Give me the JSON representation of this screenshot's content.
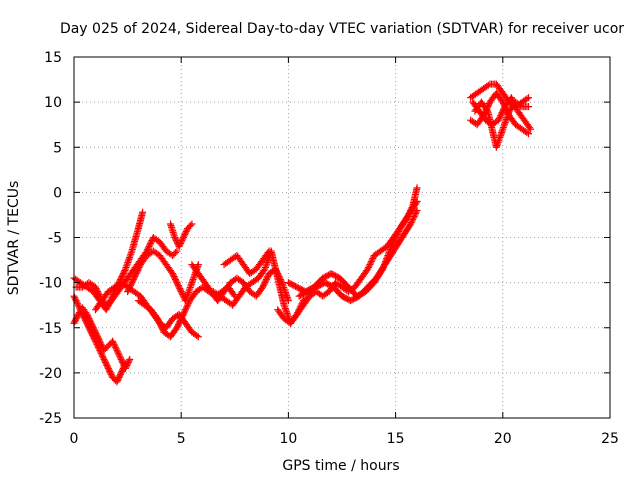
{
  "chart_data": {
    "type": "scatter",
    "title": "Day 025 of 2024, Sidereal Day-to-day VTEC variation (SDTVAR) for receiver ucor",
    "xlabel": "GPS time / hours",
    "ylabel": "SDTVAR / TECUs",
    "xlim": [
      0,
      25
    ],
    "ylim": [
      -25,
      15
    ],
    "xticks": [
      "0",
      "5",
      "10",
      "15",
      "20",
      "25"
    ],
    "yticks": [
      "-25",
      "-20",
      "-15",
      "-10",
      "-5",
      "0",
      "5",
      "10",
      "15"
    ],
    "xtick_values": [
      0,
      5,
      10,
      15,
      20,
      25
    ],
    "ytick_values": [
      -25,
      -20,
      -15,
      -10,
      -5,
      0,
      5,
      10,
      15
    ],
    "grid": true,
    "marker": "+",
    "colors": {
      "series": "#ff0000",
      "grid": "#a0a0a0",
      "axis": "#000000"
    },
    "series": [
      {
        "x": [
          0.0,
          0.2,
          0.4,
          0.6,
          0.8,
          1.0,
          1.2,
          1.4,
          1.6,
          1.8,
          2.0,
          2.2,
          2.4
        ],
        "y": [
          -11.5,
          -12.5,
          -13.5,
          -14.5,
          -15.5,
          -16.5,
          -17.5,
          -18.5,
          -19.5,
          -20.5,
          -21.0,
          -20.0,
          -19.0
        ]
      },
      {
        "x": [
          0.0,
          0.2,
          0.4,
          0.6,
          0.8,
          1.0,
          1.2,
          1.4,
          1.6,
          1.8,
          2.0,
          2.2,
          2.4,
          2.6
        ],
        "y": [
          -14.5,
          -13.5,
          -12.8,
          -13.5,
          -14.5,
          -15.5,
          -16.5,
          -17.5,
          -17.0,
          -16.5,
          -17.5,
          -18.5,
          -19.5,
          -18.5
        ]
      },
      {
        "x": [
          0.0,
          0.3,
          0.6,
          0.9,
          1.2,
          1.5,
          1.8,
          2.1,
          2.4,
          2.7,
          3.0,
          3.2
        ],
        "y": [
          -9.5,
          -10.0,
          -10.5,
          -11.0,
          -12.0,
          -13.0,
          -11.5,
          -10.0,
          -8.5,
          -6.5,
          -4.0,
          -2.2
        ]
      },
      {
        "x": [
          0.1,
          0.4,
          0.7,
          1.0,
          1.3,
          1.6,
          1.9,
          2.2,
          2.5,
          2.8,
          3.1,
          3.4,
          3.7,
          4.0,
          4.3,
          4.6,
          4.8
        ],
        "y": [
          -10.5,
          -10.5,
          -10.0,
          -10.5,
          -12.0,
          -12.5,
          -11.5,
          -10.5,
          -9.5,
          -8.5,
          -7.5,
          -6.5,
          -5.0,
          -5.5,
          -6.5,
          -7.0,
          -6.5
        ]
      },
      {
        "x": [
          1.0,
          1.3,
          1.6,
          1.9,
          2.2,
          2.5,
          2.8,
          3.1,
          3.4,
          3.7,
          4.0,
          4.3,
          4.6,
          4.9,
          5.2,
          5.5,
          5.8
        ],
        "y": [
          -13.0,
          -12.0,
          -11.0,
          -10.5,
          -10.0,
          -10.5,
          -11.0,
          -11.5,
          -12.5,
          -13.5,
          -14.5,
          -15.0,
          -14.0,
          -13.5,
          -14.5,
          -15.5,
          -16.0
        ]
      },
      {
        "x": [
          2.5,
          2.8,
          3.1,
          3.4,
          3.7,
          4.0,
          4.3,
          4.6,
          4.9,
          5.2,
          5.5,
          5.8
        ],
        "y": [
          -11.0,
          -9.5,
          -8.0,
          -7.0,
          -6.5,
          -7.0,
          -8.0,
          -9.0,
          -10.5,
          -12.0,
          -10.0,
          -8.0
        ]
      },
      {
        "x": [
          3.0,
          3.3,
          3.6,
          3.9,
          4.2,
          4.5,
          4.8,
          5.1,
          5.4,
          5.7,
          6.0,
          6.3,
          6.6,
          6.9,
          7.2,
          7.5
        ],
        "y": [
          -12.0,
          -12.5,
          -13.0,
          -14.0,
          -15.5,
          -16.0,
          -15.0,
          -13.5,
          -12.0,
          -11.0,
          -10.5,
          -11.0,
          -11.5,
          -11.0,
          -10.5,
          -11.5
        ]
      },
      {
        "x": [
          4.5,
          4.7,
          4.9,
          5.1,
          5.3,
          5.5
        ],
        "y": [
          -3.5,
          -5.0,
          -6.0,
          -5.0,
          -4.0,
          -3.5
        ]
      },
      {
        "x": [
          5.5,
          5.8,
          6.1,
          6.4,
          6.7,
          7.0,
          7.3,
          7.6,
          7.9,
          8.2,
          8.5,
          8.8,
          9.1,
          9.4,
          9.7,
          10.0
        ],
        "y": [
          -8.0,
          -9.0,
          -10.0,
          -11.0,
          -12.0,
          -11.0,
          -10.0,
          -9.5,
          -10.0,
          -11.0,
          -11.5,
          -10.5,
          -9.0,
          -8.5,
          -10.0,
          -12.0
        ]
      },
      {
        "x": [
          6.5,
          6.8,
          7.1,
          7.4,
          7.7,
          8.0,
          8.3,
          8.6,
          8.9,
          9.2,
          9.5,
          9.8,
          10.1,
          10.4,
          10.7,
          11.0
        ],
        "y": [
          -11.0,
          -11.5,
          -12.0,
          -12.5,
          -11.5,
          -10.5,
          -10.0,
          -9.5,
          -8.5,
          -6.5,
          -9.5,
          -12.5,
          -14.5,
          -13.5,
          -12.0,
          -11.5
        ]
      },
      {
        "x": [
          7.0,
          7.3,
          7.6,
          7.9,
          8.2,
          8.5,
          8.8,
          9.1
        ],
        "y": [
          -8.0,
          -7.5,
          -7.0,
          -8.0,
          -9.0,
          -8.5,
          -7.5,
          -6.5
        ]
      },
      {
        "x": [
          9.5,
          9.8,
          10.1,
          10.4,
          10.7,
          11.0,
          11.3,
          11.6,
          11.9,
          12.2,
          12.5,
          12.8,
          13.1,
          13.4,
          13.7,
          14.0,
          14.3,
          14.6,
          14.9,
          15.2,
          15.5,
          15.8,
          16.0
        ],
        "y": [
          -13.0,
          -14.0,
          -14.5,
          -13.5,
          -12.5,
          -11.5,
          -11.0,
          -11.5,
          -11.0,
          -10.0,
          -10.5,
          -11.0,
          -10.5,
          -9.5,
          -8.5,
          -7.0,
          -6.5,
          -6.0,
          -5.0,
          -4.0,
          -3.0,
          -1.5,
          0.5
        ]
      },
      {
        "x": [
          10.0,
          10.4,
          10.8,
          11.2,
          11.6,
          12.0,
          12.4,
          12.8,
          13.2,
          13.6,
          14.0,
          14.4,
          14.8,
          15.2,
          15.6,
          16.0
        ],
        "y": [
          -10.0,
          -10.5,
          -11.0,
          -10.5,
          -9.5,
          -9.0,
          -9.5,
          -10.5,
          -11.5,
          -11.0,
          -10.0,
          -8.5,
          -6.0,
          -4.0,
          -2.5,
          -1.0
        ]
      },
      {
        "x": [
          10.5,
          10.9,
          11.3,
          11.7,
          12.1,
          12.5,
          12.9,
          13.3,
          13.7,
          14.1,
          14.5,
          14.9,
          15.3,
          15.7,
          16.0
        ],
        "y": [
          -11.5,
          -11.0,
          -10.5,
          -10.0,
          -10.5,
          -11.5,
          -12.0,
          -11.5,
          -10.5,
          -9.5,
          -8.0,
          -6.5,
          -5.0,
          -3.5,
          -2.0
        ]
      },
      {
        "x": [
          18.5,
          18.8,
          19.1,
          19.4,
          19.7,
          20.0,
          20.3,
          20.6,
          20.9,
          21.2
        ],
        "y": [
          10.5,
          11.0,
          11.5,
          12.0,
          12.0,
          11.0,
          10.0,
          9.5,
          10.0,
          10.5
        ]
      },
      {
        "x": [
          18.5,
          18.8,
          19.1,
          19.4,
          19.7,
          20.0,
          20.3,
          20.6,
          20.9,
          21.2
        ],
        "y": [
          8.0,
          7.5,
          8.5,
          10.0,
          11.0,
          10.0,
          8.5,
          7.5,
          7.0,
          6.5
        ]
      },
      {
        "x": [
          18.7,
          19.0,
          19.3,
          19.5,
          19.7,
          20.0,
          20.3,
          20.6,
          20.9,
          21.2
        ],
        "y": [
          9.0,
          10.0,
          9.0,
          7.0,
          5.0,
          7.0,
          9.0,
          10.0,
          9.5,
          9.5
        ]
      },
      {
        "x": [
          18.6,
          18.9,
          19.2,
          19.5,
          19.8,
          20.1,
          20.4,
          20.7,
          21.0,
          21.3
        ],
        "y": [
          10.0,
          9.0,
          8.0,
          7.5,
          8.0,
          9.5,
          10.5,
          9.0,
          8.0,
          7.0
        ]
      }
    ]
  }
}
